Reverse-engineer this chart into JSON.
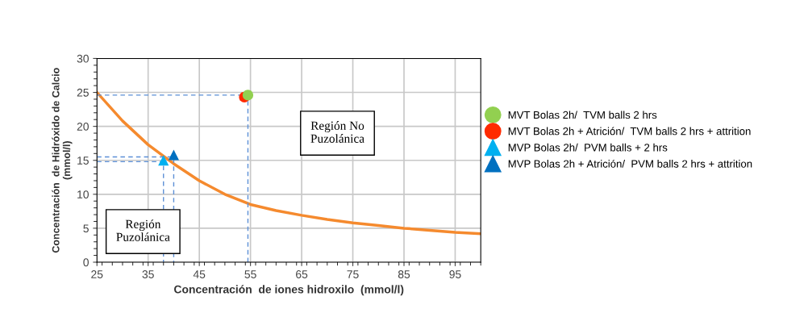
{
  "chart_data": {
    "type": "scatter",
    "xlabel": "Concentración  de iones hidroxilo  (mmol/l)",
    "ylabel": "Concentración  de Hidróxido de Calcio\n(mmol/l)",
    "xlim": [
      25,
      100
    ],
    "xticks": [
      25,
      35,
      45,
      55,
      65,
      75,
      85,
      95
    ],
    "ylim": [
      0,
      30
    ],
    "yticks": [
      0,
      5,
      10,
      15,
      20,
      25,
      30
    ],
    "grid": true,
    "legend": "right",
    "annotations": [
      "Región No\nPuzolánica",
      "Región\nPuzolánica"
    ],
    "series": [
      {
        "type": "line",
        "color": "#f58a2e",
        "marker": "none",
        "line_style": "solid",
        "x": [
          25,
          30,
          35,
          40,
          45,
          50,
          55,
          60,
          65,
          70,
          75,
          80,
          85,
          90,
          95,
          100
        ],
        "values": [
          25,
          20.8,
          17.3,
          14.5,
          12,
          10,
          8.5,
          7.6,
          6.9,
          6.3,
          5.8,
          5.4,
          5.0,
          4.7,
          4.4,
          4.2
        ]
      },
      {
        "type": "line",
        "color": "#5b8fd6",
        "marker": "none",
        "line_style": "dashed",
        "x": [
          25,
          54.5,
          54.5
        ],
        "values": [
          24.6,
          24.6,
          0
        ]
      },
      {
        "type": "line",
        "color": "#5b8fd6",
        "marker": "none",
        "line_style": "dashed",
        "x": [
          25,
          40,
          40
        ],
        "values": [
          15.5,
          15.5,
          0
        ]
      },
      {
        "type": "line",
        "color": "#5b8fd6",
        "marker": "none",
        "line_style": "dashed",
        "x": [
          25,
          38,
          38
        ],
        "values": [
          14.8,
          14.8,
          0
        ]
      },
      {
        "name": "MVT Bolas 2h/  TVM balls 2 hrs",
        "color": "#92d050",
        "marker": "circle",
        "x": [
          54.5
        ],
        "values": [
          24.6
        ]
      },
      {
        "name": "MVT Bolas 2h + Atrición/  TVM balls 2 hrs + attrition",
        "color": "#ff2a00",
        "marker": "circle",
        "x": [
          53.8
        ],
        "values": [
          24.3
        ]
      },
      {
        "name": "MVP Bolas 2h/  PVM balls + 2 hrs",
        "color": "#00b0f0",
        "marker": "triangle",
        "x": [
          38
        ],
        "values": [
          15
        ]
      },
      {
        "name": "MVP Bolas 2h + Atrición/  PVM balls 2 hrs + attrition",
        "color": "#0070c0",
        "marker": "triangle",
        "x": [
          40
        ],
        "values": [
          15.8
        ]
      }
    ]
  }
}
